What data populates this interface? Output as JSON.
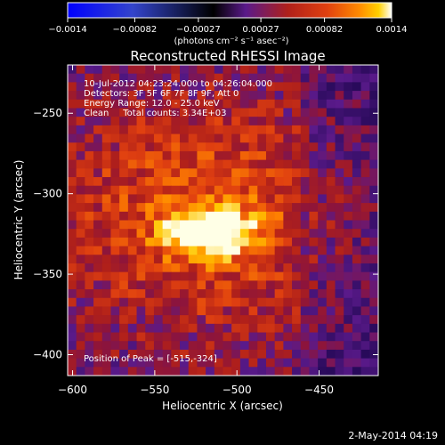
{
  "chart_data": {
    "type": "heatmap",
    "title": "Reconstructed RHESSI Image",
    "xlabel": "Heliocentric X (arcsec)",
    "ylabel": "Heliocentric Y (arcsec)",
    "xlim": [
      -603,
      -414
    ],
    "ylim": [
      -413,
      -220
    ],
    "x_ticks": [
      -600,
      -550,
      -500,
      -450
    ],
    "y_ticks": [
      -250,
      -300,
      -350,
      -400
    ],
    "colorbar": {
      "min": -0.0014,
      "max": 0.0014,
      "ticks": [
        "-0.0014",
        "-0.00082",
        "-0.00027",
        "0.00027",
        "0.00082",
        "0.0014"
      ],
      "unit_label": "(photons cm⁻² s⁻¹ asec⁻²)",
      "colormap": [
        "#0000ff",
        "#3344cc",
        "#000000",
        "#5a1a8a",
        "#b0201a",
        "#e04010",
        "#ff8a00",
        "#ffd000",
        "#ffffff"
      ]
    },
    "annotations": [
      "10-Jul-2012 04:23:24.000 to 04:26:04.000",
      "Detectors: 3F 5F 6F 7F 8F 9F, Att 0",
      "Energy Range: 12.0 - 25.0 keV",
      "Clean     Total counts: 3.34E+03"
    ],
    "peak_label": "Position of Peak = [-515,-324]",
    "peak": [
      -515,
      -324
    ],
    "grid": false
  },
  "footer": {
    "date": "2-May-2014 04:19"
  }
}
